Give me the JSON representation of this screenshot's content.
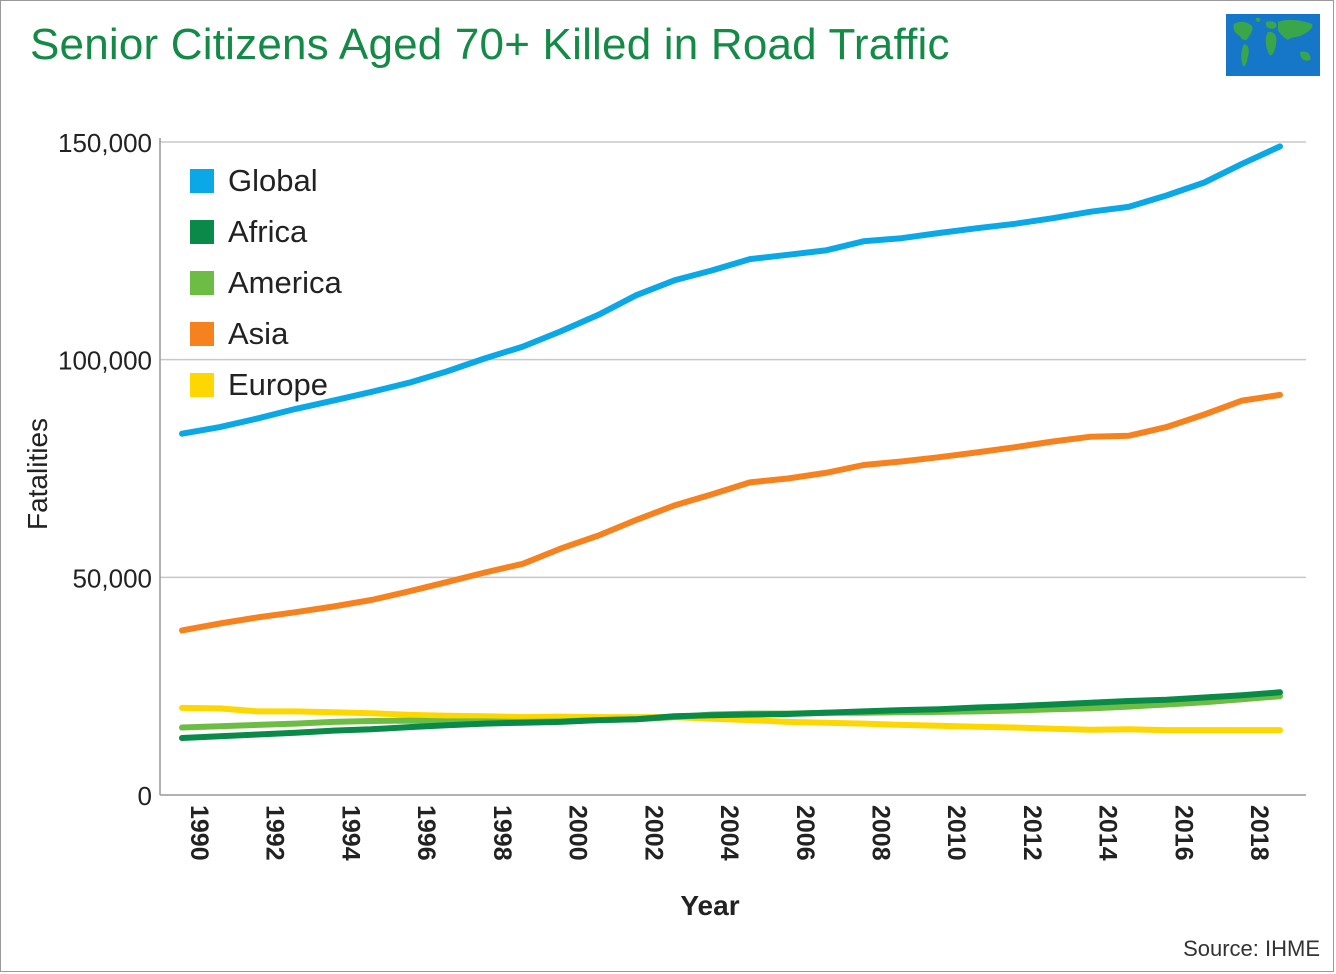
{
  "header": {
    "title": "Senior Citizens Aged 70+ Killed in Road Traffic",
    "source": "Source: IHME"
  },
  "chart_data": {
    "type": "line",
    "title": "Senior Citizens Aged 70+ Killed in Road Traffic",
    "xlabel": "Year",
    "ylabel": "Fatalities",
    "ylim": [
      0,
      150000
    ],
    "xlim": [
      1990,
      2019
    ],
    "yticks": [
      0,
      50000,
      100000,
      150000
    ],
    "ytick_labels": [
      "0",
      "50,000",
      "100,000",
      "150,000"
    ],
    "xticks": [
      1990,
      1992,
      1994,
      1996,
      1998,
      2000,
      2002,
      2004,
      2006,
      2008,
      2010,
      2012,
      2014,
      2016,
      2018
    ],
    "xtick_labels": [
      "1990",
      "1992",
      "1994",
      "1996",
      "1998",
      "2000",
      "2002",
      "2004",
      "2006",
      "2008",
      "2010",
      "2012",
      "2014",
      "2016",
      "2018"
    ],
    "grid": "horizontal",
    "legend_position": "top-left",
    "x": [
      1990,
      1991,
      1992,
      1993,
      1994,
      1995,
      1996,
      1997,
      1998,
      1999,
      2000,
      2001,
      2002,
      2003,
      2004,
      2005,
      2006,
      2007,
      2008,
      2009,
      2010,
      2011,
      2012,
      2013,
      2014,
      2015,
      2016,
      2017,
      2018,
      2019
    ],
    "series": [
      {
        "name": "Global",
        "color": "#0aa8e6",
        "values": [
          83000,
          84500,
          86500,
          88700,
          90600,
          92600,
          94700,
          97300,
          100300,
          103000,
          106500,
          110300,
          114800,
          118200,
          120500,
          123100,
          124100,
          125100,
          127200,
          127900,
          129100,
          130200,
          131200,
          132500,
          134000,
          135100,
          137700,
          140700,
          145000,
          149000
        ]
      },
      {
        "name": "Africa",
        "color": "#0a8a49",
        "values": [
          13100,
          13500,
          13900,
          14300,
          14800,
          15100,
          15600,
          16000,
          16400,
          16600,
          16800,
          17200,
          17400,
          18100,
          18300,
          18500,
          18600,
          18900,
          19200,
          19500,
          19700,
          20100,
          20400,
          20800,
          21200,
          21600,
          21900,
          22400,
          22900,
          23600
        ]
      },
      {
        "name": "America",
        "color": "#6dbd45",
        "values": [
          15500,
          15800,
          16100,
          16400,
          16800,
          17000,
          17100,
          16900,
          16900,
          16800,
          16900,
          17200,
          17400,
          17900,
          18500,
          18700,
          18700,
          18900,
          18900,
          19000,
          19100,
          19200,
          19400,
          19700,
          19900,
          20300,
          20800,
          21300,
          22000,
          22700
        ]
      },
      {
        "name": "Asia",
        "color": "#f5821f",
        "values": [
          37800,
          39400,
          40800,
          42000,
          43300,
          44800,
          46800,
          48900,
          51100,
          53100,
          56600,
          59600,
          63200,
          66500,
          69100,
          71800,
          72700,
          74000,
          75800,
          76600,
          77600,
          78700,
          79900,
          81200,
          82300,
          82500,
          84500,
          87400,
          90600,
          91900
        ]
      },
      {
        "name": "Europe",
        "color": "#ffd700",
        "values": [
          20000,
          19900,
          19200,
          19200,
          19000,
          18800,
          18400,
          18200,
          18100,
          17900,
          18000,
          17900,
          17900,
          17900,
          17500,
          17200,
          16800,
          16600,
          16400,
          16100,
          15900,
          15700,
          15500,
          15200,
          15000,
          15100,
          14900,
          14900,
          14900,
          14900
        ]
      }
    ]
  }
}
